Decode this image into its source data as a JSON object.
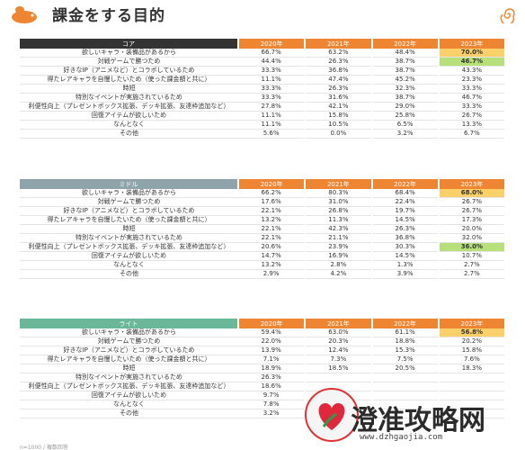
{
  "page": {
    "title": "課金をする目的",
    "footnote": "n=1000 / 複数回答"
  },
  "colors": {
    "accent_orange": "#ee8532",
    "highlight_green": "#b7e07a",
    "highlight_orange": "#fbd06a",
    "core_header": "#333333",
    "middle_header": "#8fa3ab",
    "light_header": "#6ab79a"
  },
  "years": [
    "2020年",
    "2021年",
    "2022年",
    "2023年"
  ],
  "tables": [
    {
      "category": "コア",
      "rows": [
        {
          "label": "欲しいキャラ・装備品があるから",
          "values": [
            "66.7%",
            "63.2%",
            "48.4%",
            "70.0%"
          ],
          "highlight": "orange"
        },
        {
          "label": "対戦ゲームで勝つため",
          "values": [
            "44.4%",
            "26.3%",
            "38.7%",
            "46.7%"
          ],
          "highlight": "green"
        },
        {
          "label": "好きなIP（アニメなど）とコラボしているため",
          "values": [
            "33.3%",
            "36.8%",
            "38.7%",
            "43.3%"
          ],
          "highlight": ""
        },
        {
          "label": "得たレアキャラを自慢したいため（使った課金額と共に）",
          "values": [
            "11.1%",
            "47.4%",
            "45.2%",
            "23.3%"
          ],
          "highlight": ""
        },
        {
          "label": "時短",
          "values": [
            "33.3%",
            "26.3%",
            "32.3%",
            "33.3%"
          ],
          "highlight": ""
        },
        {
          "label": "特別なイベントが実施されているため",
          "values": [
            "33.3%",
            "31.6%",
            "38.7%",
            "46.7%"
          ],
          "highlight": ""
        },
        {
          "label": "利便性向上（プレゼントボックス拡張、デッキ拡張、友達枠追加など）",
          "values": [
            "27.8%",
            "42.1%",
            "29.0%",
            "33.3%"
          ],
          "highlight": ""
        },
        {
          "label": "回復アイテムが欲しいため",
          "values": [
            "11.1%",
            "15.8%",
            "25.8%",
            "26.7%"
          ],
          "highlight": ""
        },
        {
          "label": "なんとなく",
          "values": [
            "11.1%",
            "10.5%",
            "6.5%",
            "13.3%"
          ],
          "highlight": ""
        },
        {
          "label": "その他",
          "values": [
            "5.6%",
            "0.0%",
            "3.2%",
            "6.7%"
          ],
          "highlight": ""
        }
      ]
    },
    {
      "category": "ミドル",
      "rows": [
        {
          "label": "欲しいキャラ・装備品があるから",
          "values": [
            "66.2%",
            "80.3%",
            "68.4%",
            "68.0%"
          ],
          "highlight": "orange"
        },
        {
          "label": "対戦ゲームで勝つため",
          "values": [
            "17.6%",
            "31.0%",
            "22.4%",
            "26.7%"
          ],
          "highlight": ""
        },
        {
          "label": "好きなIP（アニメなど）とコラボしているため",
          "values": [
            "22.1%",
            "26.8%",
            "19.7%",
            "26.7%"
          ],
          "highlight": ""
        },
        {
          "label": "得たレアキャラを自慢したいため（使った課金額と共に）",
          "values": [
            "13.2%",
            "11.3%",
            "14.5%",
            "17.3%"
          ],
          "highlight": ""
        },
        {
          "label": "時短",
          "values": [
            "22.1%",
            "42.3%",
            "26.3%",
            "20.0%"
          ],
          "highlight": ""
        },
        {
          "label": "特別なイベントが実施されているため",
          "values": [
            "22.1%",
            "21.1%",
            "36.8%",
            "32.0%"
          ],
          "highlight": ""
        },
        {
          "label": "利便性向上（プレゼントボックス拡張、デッキ拡張、友達枠追加など）",
          "values": [
            "20.6%",
            "23.9%",
            "30.3%",
            "36.0%"
          ],
          "highlight": "green"
        },
        {
          "label": "回復アイテムが欲しいため",
          "values": [
            "14.7%",
            "16.9%",
            "14.5%",
            "10.7%"
          ],
          "highlight": ""
        },
        {
          "label": "なんとなく",
          "values": [
            "13.2%",
            "2.8%",
            "1.3%",
            "2.7%"
          ],
          "highlight": ""
        },
        {
          "label": "その他",
          "values": [
            "2.9%",
            "4.2%",
            "3.9%",
            "2.7%"
          ],
          "highlight": ""
        }
      ]
    },
    {
      "category": "ライト",
      "rows": [
        {
          "label": "欲しいキャラ・装備品があるから",
          "values": [
            "59.4%",
            "63.0%",
            "61.1%",
            "56.8%"
          ],
          "highlight": "orange"
        },
        {
          "label": "対戦ゲームで勝つため",
          "values": [
            "22.0%",
            "20.3%",
            "18.8%",
            "20.2%"
          ],
          "highlight": ""
        },
        {
          "label": "好きなIP（アニメなど）とコラボしているため",
          "values": [
            "13.9%",
            "12.4%",
            "15.3%",
            "15.8%"
          ],
          "highlight": ""
        },
        {
          "label": "得たレアキャラを自慢したいため（使った課金額と共に）",
          "values": [
            "7.1%",
            "7.3%",
            "7.5%",
            "7.6%"
          ],
          "highlight": ""
        },
        {
          "label": "時短",
          "values": [
            "18.9%",
            "18.5%",
            "20.5%",
            "18.3%"
          ],
          "highlight": ""
        },
        {
          "label": "特別なイベントが実施されているため",
          "values": [
            "26.3%",
            "",
            "",
            ""
          ],
          "highlight": ""
        },
        {
          "label": "利便性向上（プレゼントボックス拡張、デッキ拡張、友達枠追加など）",
          "values": [
            "18.6%",
            "",
            "",
            ""
          ],
          "highlight": ""
        },
        {
          "label": "回復アイテムが欲しいため",
          "values": [
            "9.7%",
            "",
            "",
            ""
          ],
          "highlight": ""
        },
        {
          "label": "なんとなく",
          "values": [
            "7.8%",
            "",
            "",
            ""
          ],
          "highlight": ""
        },
        {
          "label": "その他",
          "values": [
            "3.2%",
            "",
            "",
            ""
          ],
          "highlight": ""
        }
      ]
    }
  ],
  "watermark": {
    "text": "澄准攻略网",
    "url": "www.dzhgaojia.com"
  }
}
